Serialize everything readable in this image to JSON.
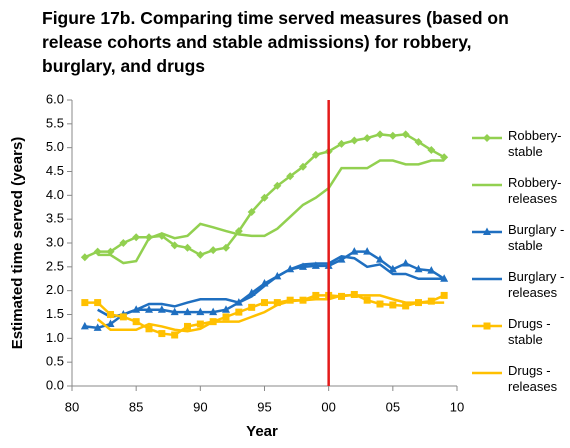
{
  "chart_data": {
    "type": "line",
    "title": "Figure  17b. Comparing time served measures (based on release cohorts and stable admissions) for robbery, burglary, and drugs",
    "x_label": "Year",
    "y_label": "Estimated time served (years)",
    "x": [
      1981,
      1982,
      1983,
      1984,
      1985,
      1986,
      1987,
      1988,
      1989,
      1990,
      1991,
      1992,
      1993,
      1994,
      1995,
      1996,
      1997,
      1998,
      1999,
      2000,
      2001,
      2002,
      2003,
      2004,
      2005,
      2006,
      2007,
      2008,
      2009
    ],
    "xlim": [
      1980,
      2010
    ],
    "xticks": [
      {
        "value": 1980,
        "label": "80"
      },
      {
        "value": 1985,
        "label": "85"
      },
      {
        "value": 1990,
        "label": "90"
      },
      {
        "value": 1995,
        "label": "95"
      },
      {
        "value": 2000,
        "label": "00"
      },
      {
        "value": 2005,
        "label": "05"
      },
      {
        "value": 2010,
        "label": "10"
      }
    ],
    "ylim": [
      0,
      6
    ],
    "yticks": [
      {
        "value": 0,
        "label": "0.0"
      },
      {
        "value": 0.5,
        "label": "0.5"
      },
      {
        "value": 1,
        "label": "1.0"
      },
      {
        "value": 1.5,
        "label": "1.5"
      },
      {
        "value": 2,
        "label": "2.0"
      },
      {
        "value": 2.5,
        "label": "2.5"
      },
      {
        "value": 3,
        "label": "3.0"
      },
      {
        "value": 3.5,
        "label": "3.5"
      },
      {
        "value": 4,
        "label": "4.0"
      },
      {
        "value": 4.5,
        "label": "4.5"
      },
      {
        "value": 5,
        "label": "5.0"
      },
      {
        "value": 5.5,
        "label": "5.5"
      },
      {
        "value": 6,
        "label": "6.0"
      }
    ],
    "grid": false,
    "reference_line": {
      "x": 2000,
      "color": "#e41a1a"
    },
    "series": [
      {
        "name": "Robbery- stable",
        "color": "#92d050",
        "marker": "diamond",
        "values": [
          2.7,
          2.82,
          2.82,
          3.0,
          3.12,
          3.12,
          3.15,
          2.95,
          2.9,
          2.75,
          2.85,
          2.9,
          3.25,
          3.65,
          3.95,
          4.2,
          4.4,
          4.6,
          4.85,
          4.92,
          5.08,
          5.15,
          5.2,
          5.28,
          5.25,
          5.28,
          5.12,
          4.95,
          4.8
        ]
      },
      {
        "name": "Robbery- releases",
        "color": "#92d050",
        "marker": "none",
        "values": [
          null,
          2.75,
          2.75,
          2.58,
          2.62,
          3.1,
          3.2,
          3.1,
          3.15,
          3.4,
          3.33,
          3.25,
          3.18,
          3.15,
          3.15,
          3.3,
          3.55,
          3.8,
          3.95,
          4.15,
          4.57,
          4.57,
          4.57,
          4.73,
          4.73,
          4.65,
          4.65,
          4.73,
          4.73
        ]
      },
      {
        "name": "Burglary - stable",
        "color": "#1f6fc0",
        "marker": "triangle",
        "values": [
          1.25,
          1.22,
          1.3,
          1.5,
          1.6,
          1.6,
          1.6,
          1.55,
          1.55,
          1.55,
          1.55,
          1.6,
          1.75,
          1.95,
          2.15,
          2.3,
          2.45,
          2.5,
          2.52,
          2.52,
          2.65,
          2.82,
          2.82,
          2.65,
          2.45,
          2.57,
          2.45,
          2.42,
          2.25
        ]
      },
      {
        "name": "Burglary - releases",
        "color": "#1f6fc0",
        "marker": "none",
        "values": [
          null,
          1.6,
          1.45,
          1.5,
          1.6,
          1.72,
          1.72,
          1.67,
          1.75,
          1.82,
          1.82,
          1.82,
          1.75,
          1.88,
          2.1,
          2.3,
          2.45,
          2.55,
          2.57,
          2.57,
          2.72,
          2.68,
          2.5,
          2.55,
          2.35,
          2.35,
          2.25,
          2.25,
          2.25
        ]
      },
      {
        "name": "Drugs - stable",
        "color": "#ffc000",
        "marker": "square",
        "values": [
          1.75,
          1.75,
          1.5,
          1.45,
          1.35,
          1.2,
          1.1,
          1.07,
          1.25,
          1.3,
          1.35,
          1.45,
          1.55,
          1.65,
          1.75,
          1.75,
          1.8,
          1.8,
          1.9,
          1.9,
          1.88,
          1.92,
          1.8,
          1.72,
          1.7,
          1.68,
          1.75,
          1.78,
          1.9
        ]
      },
      {
        "name": "Drugs - releases",
        "color": "#ffc000",
        "marker": "none",
        "values": [
          null,
          1.4,
          1.18,
          1.18,
          1.18,
          1.3,
          1.25,
          1.18,
          1.15,
          1.2,
          1.35,
          1.35,
          1.35,
          1.45,
          1.55,
          1.7,
          1.78,
          1.8,
          1.82,
          1.82,
          1.9,
          1.9,
          1.9,
          1.9,
          1.82,
          1.75,
          1.75,
          1.75,
          1.75
        ]
      }
    ]
  }
}
